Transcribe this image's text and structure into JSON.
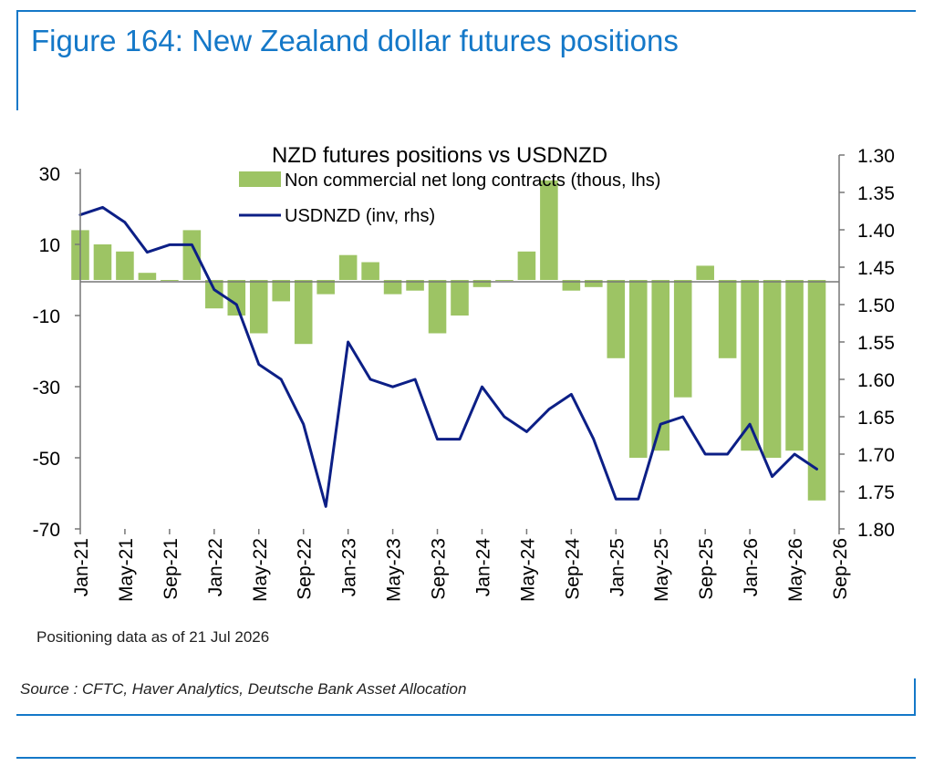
{
  "figure": {
    "title": "Figure 164: New Zealand dollar futures positions",
    "note": "Positioning data as of 21 Jul 2026",
    "source": "Source : CFTC, Haver Analytics, Deutsche Bank Asset Allocation"
  },
  "colors": {
    "accent": "#1478c8",
    "bars": "#9dc464",
    "line": "#0c1f86"
  },
  "chart_data": {
    "type": "bar",
    "title": "NZD futures positions  vs USDNZD",
    "legend_placement": "top-center",
    "grid": false,
    "x_tick_labels": [
      "Jan-21",
      "May-21",
      "Sep-21",
      "Jan-22",
      "May-22",
      "Sep-22",
      "Jan-23",
      "May-23",
      "Sep-23",
      "Jan-24",
      "May-24",
      "Sep-24",
      "Jan-25",
      "May-25",
      "Sep-25",
      "Jan-26",
      "May-26",
      "Sep-26"
    ],
    "y_left": {
      "ticks": [
        "30",
        "10",
        "-10",
        "-30",
        "-50",
        "-70"
      ],
      "range": [
        -70,
        30
      ]
    },
    "y_right": {
      "ticks": [
        "1.30",
        "1.35",
        "1.40",
        "1.45",
        "1.50",
        "1.55",
        "1.60",
        "1.65",
        "1.70",
        "1.75",
        "1.80"
      ],
      "range": [
        1.3,
        1.8
      ],
      "inverted": true
    },
    "series": [
      {
        "name": "Non commercial net long contracts (thous, lhs)",
        "type": "bar",
        "axis": "left",
        "x": [
          "Jan-21",
          "Mar-21",
          "May-21",
          "Jul-21",
          "Sep-21",
          "Nov-21",
          "Jan-22",
          "Mar-22",
          "May-22",
          "Jul-22",
          "Sep-22",
          "Nov-22",
          "Jan-23",
          "Mar-23",
          "May-23",
          "Jul-23",
          "Sep-23",
          "Nov-23",
          "Jan-24",
          "Mar-24",
          "May-24",
          "Jul-24",
          "Sep-24",
          "Nov-24",
          "Jan-25",
          "Mar-25",
          "May-25",
          "Jul-25",
          "Sep-25",
          "Nov-25",
          "Jan-26",
          "Mar-26",
          "May-26",
          "Jul-26"
        ],
        "values": [
          14,
          10,
          8,
          2,
          0,
          14,
          -8,
          -10,
          -15,
          -6,
          -18,
          -4,
          7,
          5,
          -4,
          -3,
          -15,
          -10,
          -2,
          0,
          8,
          28,
          -3,
          -2,
          -22,
          -50,
          -48,
          -33,
          4,
          -22,
          -48,
          -50,
          -48,
          -62
        ]
      },
      {
        "name": "USDNZD (inv, rhs)",
        "type": "line",
        "axis": "right",
        "x": [
          "Jan-21",
          "Mar-21",
          "May-21",
          "Jul-21",
          "Sep-21",
          "Nov-21",
          "Jan-22",
          "Mar-22",
          "May-22",
          "Jul-22",
          "Sep-22",
          "Nov-22",
          "Jan-23",
          "Mar-23",
          "May-23",
          "Jul-23",
          "Sep-23",
          "Nov-23",
          "Jan-24",
          "Mar-24",
          "May-24",
          "Jul-24",
          "Sep-24",
          "Nov-24",
          "Jan-25",
          "Mar-25",
          "May-25",
          "Jul-25",
          "Sep-25",
          "Nov-25",
          "Jan-26",
          "Mar-26",
          "May-26",
          "Jul-26"
        ],
        "values": [
          1.38,
          1.37,
          1.39,
          1.43,
          1.42,
          1.42,
          1.48,
          1.5,
          1.58,
          1.6,
          1.66,
          1.77,
          1.55,
          1.6,
          1.61,
          1.6,
          1.68,
          1.68,
          1.61,
          1.65,
          1.67,
          1.64,
          1.62,
          1.68,
          1.76,
          1.76,
          1.66,
          1.65,
          1.7,
          1.7,
          1.66,
          1.73,
          1.7,
          1.72
        ]
      }
    ]
  }
}
